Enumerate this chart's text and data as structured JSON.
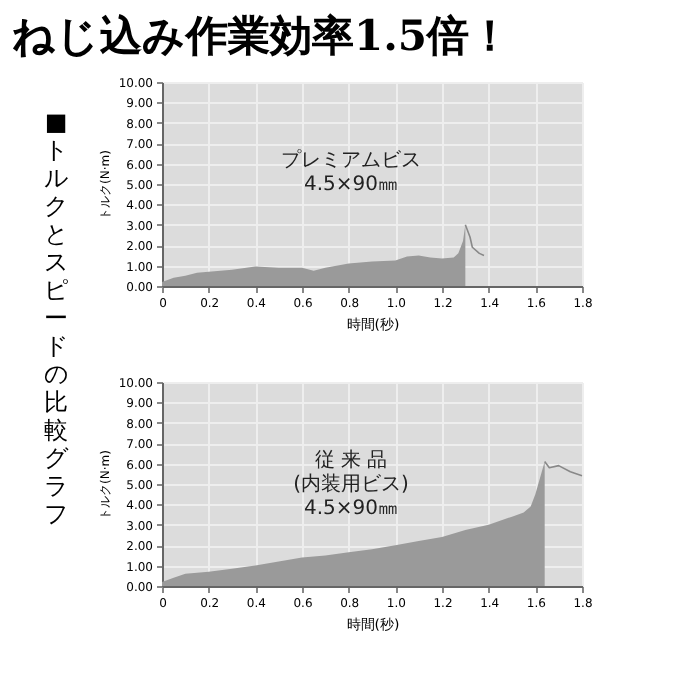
{
  "chart_data": [
    {
      "type": "area",
      "title": "ねじ込み作業効率1.5倍！",
      "xlabel": "時間(秒)",
      "ylabel": "トルク(N·m)",
      "annotations": [
        "■トルクとスピードの比較グラフ",
        "プレミアムビス\n4.5×90㎜"
      ],
      "xlim": [
        0,
        1.8
      ],
      "ylim": [
        0,
        10
      ],
      "grid": true,
      "xticks": [
        {
          "value": 0,
          "label": "0"
        },
        {
          "value": 0.2,
          "label": "0.2"
        },
        {
          "value": 0.4,
          "label": "0.4"
        },
        {
          "value": 0.6,
          "label": "0.6"
        },
        {
          "value": 0.8,
          "label": "0.8"
        },
        {
          "value": 1,
          "label": "1.0"
        },
        {
          "value": 1.2,
          "label": "1.2"
        },
        {
          "value": 1.4,
          "label": "1.4"
        },
        {
          "value": 1.6,
          "label": "1.6"
        },
        {
          "value": 1.8,
          "label": "1.8"
        }
      ],
      "yticks": [
        {
          "value": 0,
          "label": "0.00"
        },
        {
          "value": 1,
          "label": "1.00"
        },
        {
          "value": 2,
          "label": "2.00"
        },
        {
          "value": 3,
          "label": "3.00"
        },
        {
          "value": 4,
          "label": "4.00"
        },
        {
          "value": 5,
          "label": "5.00"
        },
        {
          "value": 6,
          "label": "6.00"
        },
        {
          "value": 7,
          "label": "7.00"
        },
        {
          "value": 8,
          "label": "8.00"
        },
        {
          "value": 9,
          "label": "9.00"
        },
        {
          "value": 10,
          "label": "10.00"
        }
      ],
      "series": [
        {
          "type": "area",
          "color": "#9a9a9a",
          "x": [
            0,
            0.05,
            0.1,
            0.15,
            0.2,
            0.3,
            0.4,
            0.5,
            0.6,
            0.65,
            0.7,
            0.8,
            0.9,
            1.0,
            1.05,
            1.1,
            1.15,
            1.2,
            1.25,
            1.27,
            1.29,
            1.3
          ],
          "values": [
            0.2,
            0.4,
            0.5,
            0.65,
            0.7,
            0.8,
            0.95,
            0.9,
            0.9,
            0.75,
            0.9,
            1.1,
            1.2,
            1.25,
            1.45,
            1.5,
            1.4,
            1.35,
            1.4,
            1.6,
            2.2,
            3.0
          ]
        },
        {
          "type": "line",
          "color": "#888888",
          "x": [
            1.3,
            1.32,
            1.33,
            1.36,
            1.38
          ],
          "values": [
            3.0,
            2.4,
            1.9,
            1.6,
            1.5
          ]
        }
      ]
    },
    {
      "type": "area",
      "xlabel": "時間(秒)",
      "ylabel": "トルク(N·m)",
      "annotations": [
        "従 来 品\n(内装用ビス)\n4.5×90㎜"
      ],
      "xlim": [
        0,
        1.8
      ],
      "ylim": [
        0,
        10
      ],
      "grid": true,
      "xticks": [
        {
          "value": 0,
          "label": "0"
        },
        {
          "value": 0.2,
          "label": "0.2"
        },
        {
          "value": 0.4,
          "label": "0.4"
        },
        {
          "value": 0.6,
          "label": "0.6"
        },
        {
          "value": 0.8,
          "label": "0.8"
        },
        {
          "value": 1,
          "label": "1.0"
        },
        {
          "value": 1.2,
          "label": "1.2"
        },
        {
          "value": 1.4,
          "label": "1.4"
        },
        {
          "value": 1.6,
          "label": "1.6"
        },
        {
          "value": 1.8,
          "label": "1.8"
        }
      ],
      "yticks": [
        {
          "value": 0,
          "label": "0.00"
        },
        {
          "value": 1,
          "label": "1.00"
        },
        {
          "value": 2,
          "label": "2.00"
        },
        {
          "value": 3,
          "label": "3.00"
        },
        {
          "value": 4,
          "label": "4.00"
        },
        {
          "value": 5,
          "label": "5.00"
        },
        {
          "value": 6,
          "label": "6.00"
        },
        {
          "value": 7,
          "label": "7.00"
        },
        {
          "value": 8,
          "label": "8.00"
        },
        {
          "value": 9,
          "label": "9.00"
        },
        {
          "value": 10,
          "label": "10.00"
        }
      ],
      "series": [
        {
          "type": "area",
          "color": "#9a9a9a",
          "x": [
            0,
            0.05,
            0.1,
            0.2,
            0.3,
            0.4,
            0.5,
            0.6,
            0.7,
            0.8,
            0.9,
            1.0,
            1.1,
            1.2,
            1.3,
            1.4,
            1.5,
            1.55,
            1.58,
            1.6,
            1.62,
            1.64
          ],
          "values": [
            0.2,
            0.4,
            0.6,
            0.7,
            0.85,
            1.0,
            1.2,
            1.4,
            1.5,
            1.65,
            1.8,
            2.0,
            2.2,
            2.4,
            2.75,
            3.0,
            3.4,
            3.6,
            3.9,
            4.5,
            5.3,
            6.1
          ]
        },
        {
          "type": "line",
          "color": "#888888",
          "x": [
            1.64,
            1.66,
            1.7,
            1.75,
            1.8
          ],
          "values": [
            6.1,
            5.8,
            5.9,
            5.6,
            5.4
          ]
        }
      ]
    }
  ]
}
